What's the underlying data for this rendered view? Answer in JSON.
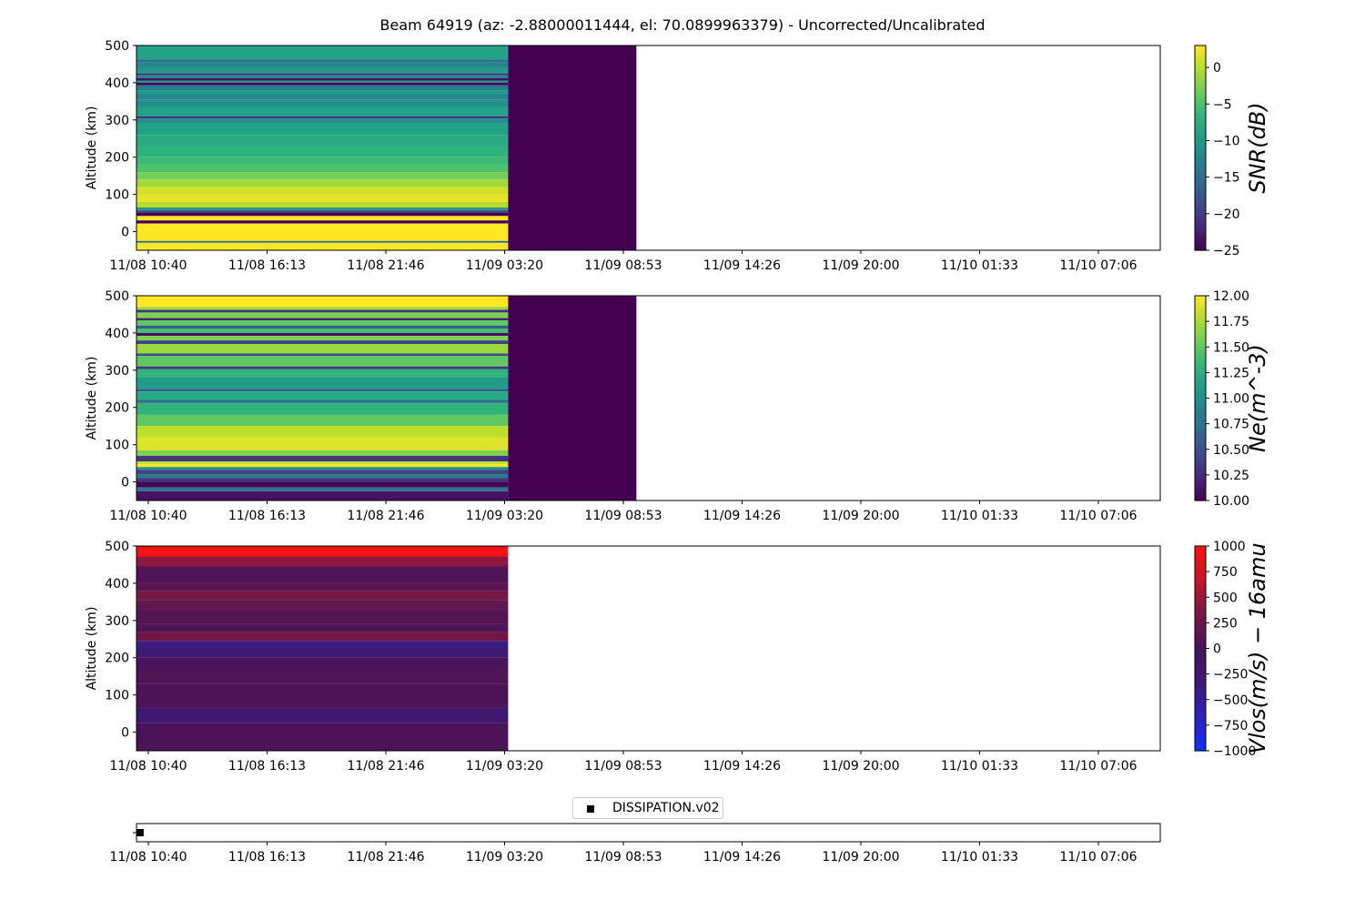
{
  "title": "Beam 64919 (az: -2.88000011444, el: 70.0899963379) - Uncorrected/Uncalibrated",
  "legend": {
    "label": "DISSIPATION.v02",
    "marker_color": "#000000"
  },
  "chart_data": [
    {
      "type": "heatmap",
      "name": "snr",
      "colormap": "viridis",
      "ylabel": "Altitude (km)",
      "ylim": [
        -50,
        500
      ],
      "yticks": [
        "500",
        "400",
        "300",
        "200",
        "100",
        "0"
      ],
      "ytick_values": [
        500,
        400,
        300,
        200,
        100,
        0
      ],
      "xticks": [
        "11/08 10:40",
        "11/08 16:13",
        "11/08 21:46",
        "11/09 03:20",
        "11/09 08:53",
        "11/09 14:26",
        "11/09 20:00",
        "11/10 01:33",
        "11/10 07:06"
      ],
      "data_extent_ticks": [
        -0.1,
        3.03
      ],
      "fill_extent_ticks": [
        3.03,
        4.11
      ],
      "fill_value": -25,
      "colorbar": {
        "label": "SNR(dB)",
        "range": [
          -25,
          3
        ],
        "ticks": [
          "0",
          "−5",
          "−10",
          "−15",
          "−20",
          "−25"
        ],
        "tick_values": [
          0,
          -5,
          -10,
          -15,
          -20,
          -25
        ]
      },
      "bands": [
        {
          "alt": [
            463,
            500
          ],
          "value": -9
        },
        {
          "alt": [
            455,
            463
          ],
          "value": -14
        },
        {
          "alt": [
            440,
            455
          ],
          "value": -12
        },
        {
          "alt": [
            425,
            440
          ],
          "value": -10
        },
        {
          "alt": [
            420,
            425
          ],
          "value": -22
        },
        {
          "alt": [
            412,
            420
          ],
          "value": -12
        },
        {
          "alt": [
            406,
            412
          ],
          "value": -24
        },
        {
          "alt": [
            400,
            406
          ],
          "value": -11
        },
        {
          "alt": [
            393,
            400
          ],
          "value": -25
        },
        {
          "alt": [
            380,
            393
          ],
          "value": -13
        },
        {
          "alt": [
            368,
            380
          ],
          "value": -10
        },
        {
          "alt": [
            355,
            368
          ],
          "value": -12
        },
        {
          "alt": [
            335,
            355
          ],
          "value": -11
        },
        {
          "alt": [
            310,
            335
          ],
          "value": -9
        },
        {
          "alt": [
            304,
            310
          ],
          "value": -21
        },
        {
          "alt": [
            290,
            304
          ],
          "value": -11
        },
        {
          "alt": [
            260,
            290
          ],
          "value": -9
        },
        {
          "alt": [
            230,
            260
          ],
          "value": -8
        },
        {
          "alt": [
            200,
            230
          ],
          "value": -7
        },
        {
          "alt": [
            180,
            200
          ],
          "value": -6
        },
        {
          "alt": [
            160,
            180
          ],
          "value": -5
        },
        {
          "alt": [
            140,
            160
          ],
          "value": -3
        },
        {
          "alt": [
            120,
            140
          ],
          "value": -1
        },
        {
          "alt": [
            100,
            120
          ],
          "value": 1
        },
        {
          "alt": [
            80,
            100
          ],
          "value": 2
        },
        {
          "alt": [
            65,
            80
          ],
          "value": 0
        },
        {
          "alt": [
            58,
            65
          ],
          "value": -10
        },
        {
          "alt": [
            52,
            58
          ],
          "value": -18
        },
        {
          "alt": [
            42,
            52
          ],
          "value": -25
        },
        {
          "alt": [
            30,
            42
          ],
          "value": 3
        },
        {
          "alt": [
            22,
            30
          ],
          "value": -25
        },
        {
          "alt": [
            -25,
            22
          ],
          "value": 3
        },
        {
          "alt": [
            -30,
            -25
          ],
          "value": -15
        },
        {
          "alt": [
            -50,
            -30
          ],
          "value": 3
        }
      ]
    },
    {
      "type": "heatmap",
      "name": "ne",
      "colormap": "viridis",
      "ylabel": "Altitude (km)",
      "ylim": [
        -50,
        500
      ],
      "yticks": [
        "500",
        "400",
        "300",
        "200",
        "100",
        "0"
      ],
      "ytick_values": [
        500,
        400,
        300,
        200,
        100,
        0
      ],
      "xticks": [
        "11/08 10:40",
        "11/08 16:13",
        "11/08 21:46",
        "11/09 03:20",
        "11/09 08:53",
        "11/09 14:26",
        "11/09 20:00",
        "11/10 01:33",
        "11/10 07:06"
      ],
      "data_extent_ticks": [
        -0.1,
        3.03
      ],
      "fill_extent_ticks": [
        3.03,
        4.11
      ],
      "fill_value": 10.0,
      "colorbar": {
        "label": "Ne(m^-3)",
        "range": [
          10.0,
          12.0
        ],
        "ticks": [
          "12.00",
          "11.75",
          "11.50",
          "11.25",
          "11.00",
          "10.75",
          "10.50",
          "10.25",
          "10.00"
        ],
        "tick_values": [
          12.0,
          11.75,
          11.5,
          11.25,
          11.0,
          10.75,
          10.5,
          10.25,
          10.0
        ]
      },
      "bands": [
        {
          "alt": [
            470,
            500
          ],
          "value": 12.0
        },
        {
          "alt": [
            462,
            470
          ],
          "value": 11.7
        },
        {
          "alt": [
            455,
            462
          ],
          "value": 10.3
        },
        {
          "alt": [
            440,
            455
          ],
          "value": 11.6
        },
        {
          "alt": [
            434,
            440
          ],
          "value": 10.2
        },
        {
          "alt": [
            420,
            434
          ],
          "value": 11.5
        },
        {
          "alt": [
            412,
            420
          ],
          "value": 10.6
        },
        {
          "alt": [
            400,
            412
          ],
          "value": 11.4
        },
        {
          "alt": [
            392,
            400
          ],
          "value": 10.1
        },
        {
          "alt": [
            380,
            392
          ],
          "value": 11.6
        },
        {
          "alt": [
            370,
            380
          ],
          "value": 10.4
        },
        {
          "alt": [
            345,
            370
          ],
          "value": 11.7
        },
        {
          "alt": [
            338,
            345
          ],
          "value": 10.5
        },
        {
          "alt": [
            310,
            338
          ],
          "value": 11.5
        },
        {
          "alt": [
            303,
            310
          ],
          "value": 10.3
        },
        {
          "alt": [
            280,
            303
          ],
          "value": 11.3
        },
        {
          "alt": [
            250,
            280
          ],
          "value": 11.1
        },
        {
          "alt": [
            243,
            250
          ],
          "value": 10.6
        },
        {
          "alt": [
            220,
            243
          ],
          "value": 11.2
        },
        {
          "alt": [
            212,
            220
          ],
          "value": 10.7
        },
        {
          "alt": [
            180,
            212
          ],
          "value": 11.3
        },
        {
          "alt": [
            150,
            180
          ],
          "value": 11.5
        },
        {
          "alt": [
            120,
            150
          ],
          "value": 11.8
        },
        {
          "alt": [
            85,
            120
          ],
          "value": 11.9
        },
        {
          "alt": [
            70,
            85
          ],
          "value": 11.6
        },
        {
          "alt": [
            55,
            70
          ],
          "value": 10.3
        },
        {
          "alt": [
            48,
            55
          ],
          "value": 11.8
        },
        {
          "alt": [
            40,
            48
          ],
          "value": 12.0
        },
        {
          "alt": [
            32,
            40
          ],
          "value": 11.0
        },
        {
          "alt": [
            20,
            32
          ],
          "value": 10.4
        },
        {
          "alt": [
            10,
            20
          ],
          "value": 10.8
        },
        {
          "alt": [
            0,
            10
          ],
          "value": 10.3
        },
        {
          "alt": [
            -15,
            0
          ],
          "value": 10.0
        },
        {
          "alt": [
            -25,
            -15
          ],
          "value": 10.8
        },
        {
          "alt": [
            -50,
            -25
          ],
          "value": 10.1
        }
      ]
    },
    {
      "type": "heatmap",
      "name": "vlos",
      "colormap": "blue-red",
      "ylabel": "Altitude (km)",
      "ylim": [
        -50,
        500
      ],
      "yticks": [
        "500",
        "400",
        "300",
        "200",
        "100",
        "0"
      ],
      "ytick_values": [
        500,
        400,
        300,
        200,
        100,
        0
      ],
      "xticks": [
        "11/08 10:40",
        "11/08 16:13",
        "11/08 21:46",
        "11/09 03:20",
        "11/09 08:53",
        "11/09 14:26",
        "11/09 20:00",
        "11/10 01:33",
        "11/10 07:06"
      ],
      "data_extent_ticks": [
        -0.1,
        3.03
      ],
      "colorbar": {
        "label": "Vlos(m/s) − 16amu",
        "range": [
          -1000,
          1000
        ],
        "ticks": [
          "1000",
          "750",
          "500",
          "250",
          "0",
          "−250",
          "−500",
          "−750",
          "−1000"
        ],
        "tick_values": [
          1000,
          750,
          500,
          250,
          0,
          -250,
          -500,
          -750,
          -1000
        ]
      },
      "bands": [
        {
          "alt": [
            472,
            500
          ],
          "value": 950
        },
        {
          "alt": [
            445,
            472
          ],
          "value": 420
        },
        {
          "alt": [
            400,
            445
          ],
          "value": 60
        },
        {
          "alt": [
            380,
            400
          ],
          "value": 130
        },
        {
          "alt": [
            355,
            380
          ],
          "value": 320
        },
        {
          "alt": [
            330,
            355
          ],
          "value": 180
        },
        {
          "alt": [
            290,
            330
          ],
          "value": 100
        },
        {
          "alt": [
            270,
            290
          ],
          "value": 50
        },
        {
          "alt": [
            245,
            270
          ],
          "value": 280
        },
        {
          "alt": [
            225,
            245
          ],
          "value": -380
        },
        {
          "alt": [
            200,
            225
          ],
          "value": -260
        },
        {
          "alt": [
            170,
            200
          ],
          "value": 20
        },
        {
          "alt": [
            130,
            170
          ],
          "value": 60
        },
        {
          "alt": [
            65,
            130
          ],
          "value": 40
        },
        {
          "alt": [
            25,
            65
          ],
          "value": -230
        },
        {
          "alt": [
            -50,
            25
          ],
          "value": 30
        }
      ]
    },
    {
      "type": "scatter",
      "name": "dissipation",
      "series": [
        {
          "name": "DISSIPATION.v02",
          "x_ticks": [
            -0.07
          ],
          "y": [
            0
          ]
        }
      ],
      "xticks": [
        "11/08 10:40",
        "11/08 16:13",
        "11/08 21:46",
        "11/09 03:20",
        "11/09 08:53",
        "11/09 14:26",
        "11/09 20:00",
        "11/10 01:33",
        "11/10 07:06"
      ]
    }
  ]
}
